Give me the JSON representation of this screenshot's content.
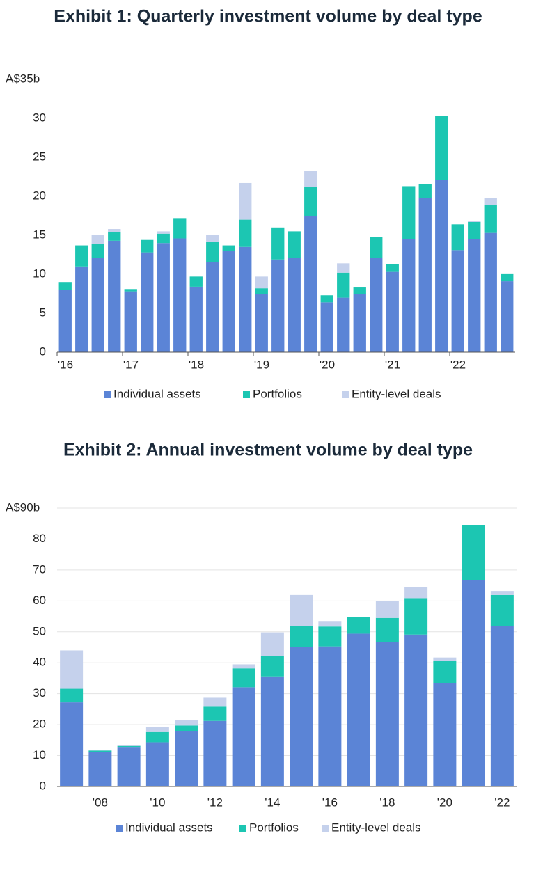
{
  "chart_data": [
    {
      "type": "bar",
      "stacked": true,
      "title": "Exhibit 1: Quarterly investment volume by deal type",
      "categories": [
        "'16",
        null,
        null,
        null,
        "'17",
        null,
        null,
        null,
        "'18",
        null,
        null,
        null,
        "'19",
        null,
        null,
        null,
        "'20",
        null,
        null,
        null,
        "'21",
        null,
        null,
        null,
        "'22",
        null,
        null,
        null
      ],
      "series": [
        {
          "name": "Individual assets",
          "color": "#5b84d6",
          "values": [
            8,
            11,
            12.1,
            14.3,
            7.8,
            12.8,
            14,
            14.6,
            8.4,
            11.6,
            13,
            13.5,
            7.5,
            11.9,
            12.1,
            17.5,
            6.4,
            7,
            7.5,
            12.1,
            10.3,
            14.5,
            19.8,
            22.1,
            13.1,
            14.5,
            15.3,
            9.1
          ]
        },
        {
          "name": "Portfolios",
          "color": "#1cc6b2",
          "values": [
            1,
            2.7,
            1.8,
            1.1,
            0.3,
            1.6,
            1.2,
            2.6,
            1.3,
            2.6,
            0.7,
            3.5,
            0.7,
            4.1,
            3.4,
            3.7,
            0.9,
            3.2,
            0.8,
            2.7,
            1,
            6.8,
            1.8,
            8.2,
            3.3,
            2.2,
            3.6,
            1
          ]
        },
        {
          "name": "Entity-level deals",
          "color": "#c5d1ec",
          "values": [
            0,
            0,
            1.1,
            0.4,
            0,
            0,
            0.3,
            0,
            0,
            0.8,
            0,
            4.7,
            1.5,
            0,
            0,
            2.1,
            0,
            1.2,
            0,
            0,
            0,
            0,
            0,
            0,
            0,
            0.1,
            0.9,
            0
          ]
        }
      ],
      "ylim": [
        0,
        35
      ],
      "yticks": [
        0,
        5,
        10,
        15,
        20,
        25,
        30,
        {
          "value": 35,
          "label": "A$35b"
        }
      ],
      "grid": false
    },
    {
      "type": "bar",
      "stacked": true,
      "title": "Exhibit 2: Annual investment volume by deal type",
      "categories": [
        null,
        "'08",
        null,
        "'10",
        null,
        "'12",
        null,
        "'14",
        null,
        "'16",
        null,
        "'18",
        null,
        "'20",
        null,
        "'22"
      ],
      "series": [
        {
          "name": "Individual assets",
          "color": "#5b84d6",
          "values": [
            27.2,
            11.2,
            12.8,
            14.3,
            17.8,
            21.2,
            32.1,
            35.6,
            45.2,
            45.3,
            49.4,
            46.7,
            49.1,
            33.3,
            66.8,
            51.9
          ]
        },
        {
          "name": "Portfolios",
          "color": "#1cc6b2",
          "values": [
            4.4,
            0.4,
            0.3,
            3.3,
            1.9,
            4.6,
            6.1,
            6.5,
            6.7,
            6.4,
            5.5,
            7.8,
            11.8,
            7.2,
            17.6,
            10
          ]
        },
        {
          "name": "Entity-level deals",
          "color": "#c5d1ec",
          "values": [
            12.4,
            0.3,
            0.2,
            1.6,
            1.9,
            2.9,
            1.3,
            7.7,
            10,
            1.8,
            0,
            5.5,
            3.5,
            1.2,
            0,
            1.3
          ]
        }
      ],
      "ylim": [
        0,
        90
      ],
      "yticks": [
        0,
        10,
        20,
        30,
        40,
        50,
        60,
        70,
        80,
        {
          "value": 90,
          "label": "A$90b"
        }
      ],
      "grid": true
    }
  ]
}
